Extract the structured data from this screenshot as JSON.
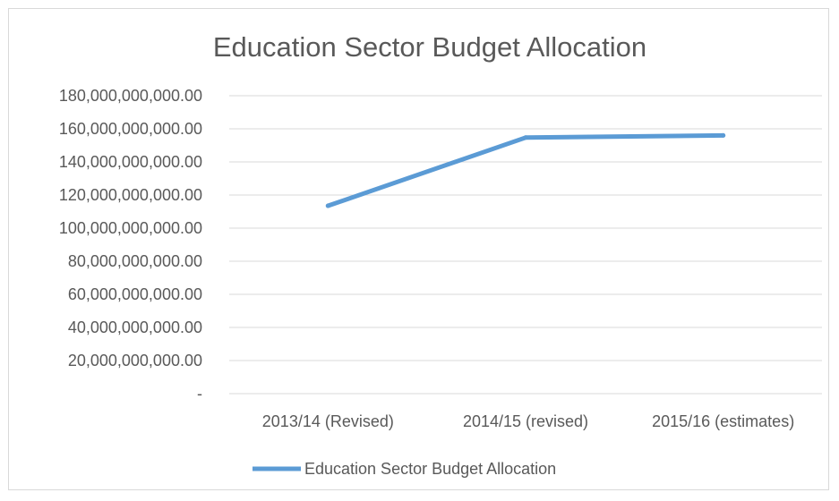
{
  "chart_data": {
    "type": "line",
    "title": "Education Sector Budget Allocation",
    "xlabel": "",
    "ylabel": "",
    "categories": [
      "2013/14 (Revised)",
      "2014/15 (revised)",
      "2015/16 (estimates)"
    ],
    "series": [
      {
        "name": "Education Sector Budget Allocation",
        "values": [
          113500000000,
          154700000000,
          156000000000
        ],
        "color": "#5b9bd5"
      }
    ],
    "ylim": [
      0,
      180000000000
    ],
    "y_ticks": [
      {
        "value": 0,
        "label": "-"
      },
      {
        "value": 20000000000,
        "label": "20,000,000,000.00"
      },
      {
        "value": 40000000000,
        "label": "40,000,000,000.00"
      },
      {
        "value": 60000000000,
        "label": "60,000,000,000.00"
      },
      {
        "value": 80000000000,
        "label": "80,000,000,000.00"
      },
      {
        "value": 100000000000,
        "label": "100,000,000,000.00"
      },
      {
        "value": 120000000000,
        "label": "120,000,000,000.00"
      },
      {
        "value": 140000000000,
        "label": "140,000,000,000.00"
      },
      {
        "value": 160000000000,
        "label": "160,000,000,000.00"
      },
      {
        "value": 180000000000,
        "label": "180,000,000,000.00"
      }
    ],
    "grid": true,
    "legend": "bottom",
    "gridline_color": "#d9d9d9",
    "text_color": "#595959"
  }
}
